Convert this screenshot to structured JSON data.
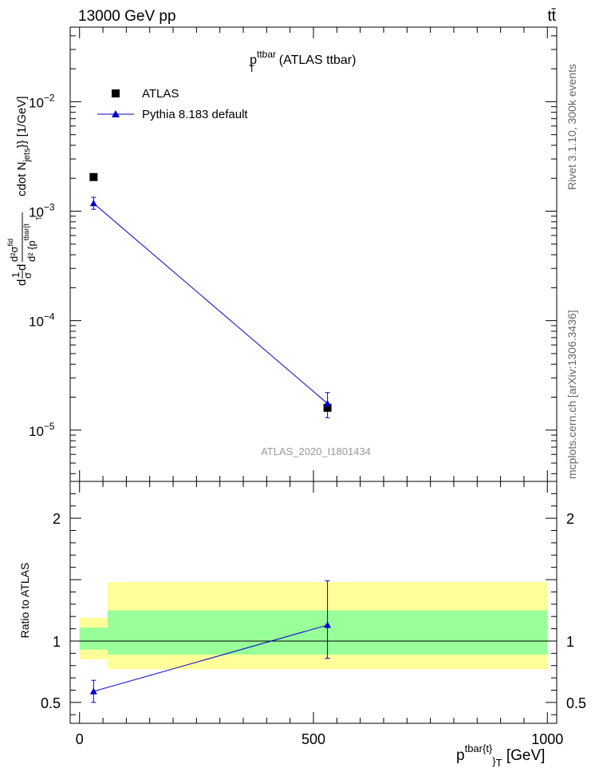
{
  "header": {
    "energy_label": "13000 GeV pp",
    "process_label": "tt̄"
  },
  "plot_title": {
    "main": "p",
    "sup": "ttbar",
    "sub": "T",
    "rest": " (ATLAS ttbar)"
  },
  "side_labels": {
    "rivet": "Rivet 3.1.10,  300k events",
    "mcplots": "mcplots.cern.ch [arXiv:1306.3436]"
  },
  "analysis_id": "ATLAS_2020_I1801434",
  "colors": {
    "data": "#000000",
    "mc": "#0000cc",
    "band_inner": "#99ff99",
    "band_outer": "#ffff99"
  },
  "chart_data": [
    {
      "type": "scatter",
      "panel": "main",
      "yscale": "log",
      "ylabel": "d²σ / d²{p_T^{tbar{t}} cdot N_jets}} [1/GeV]",
      "ylabel_parts": {
        "frac1_num": "1",
        "frac1_den": "σ",
        "d_lead": "d",
        "d_mid": "d",
        "frac2_num": "d²σ",
        "frac2_num_sup": "fid",
        "frac2_den": "d² {p",
        "frac2_den_sup": "tbar{t",
        "frac2_den_sub": "T",
        "tail": "cdot N",
        "tail_sub": "jets",
        "tail_end": "}} [1/GeV]"
      },
      "xlim": [
        -20,
        1020
      ],
      "ylim": [
        3.4e-06,
        0.048
      ],
      "yticks": [
        {
          "value": 1e-05,
          "label_base": "10",
          "label_exp": "−5"
        },
        {
          "value": 0.0001,
          "label_base": "10",
          "label_exp": "−4"
        },
        {
          "value": 0.001,
          "label_base": "10",
          "label_exp": "−3"
        },
        {
          "value": 0.01,
          "label_base": "10",
          "label_exp": "−2"
        }
      ],
      "legend": {
        "placement": "top-left",
        "entries": [
          "ATLAS",
          "Pythia 8.183 default"
        ]
      },
      "series": [
        {
          "name": "ATLAS",
          "marker": "square",
          "x": [
            30,
            530
          ],
          "y": [
            0.00205,
            1.6e-05
          ],
          "xerr": [
            [
              0,
              60
            ],
            [
              60,
              1000
            ]
          ]
        },
        {
          "name": "Pythia 8.183 default",
          "marker": "triangle",
          "x": [
            30,
            530
          ],
          "y": [
            0.00118,
            1.75e-05
          ],
          "yerr_low": [
            0.00104,
            1.3e-05
          ],
          "yerr_high": [
            0.00134,
            2.2e-05
          ]
        }
      ]
    },
    {
      "type": "scatter",
      "panel": "ratio",
      "ylabel": "Ratio to ATLAS",
      "xlabel": "p^{tbar{t}}_T [GeV]",
      "xlabel_parts": {
        "main": "p",
        "sup": "tbar{t}",
        "sub": "}",
        "sub2": "T",
        "unit": " [GeV]"
      },
      "xlim": [
        -20,
        1020
      ],
      "ylim": [
        0.33,
        2.3
      ],
      "xticks": [
        0,
        500,
        1000
      ],
      "yticks": [
        0.5,
        1,
        2
      ],
      "bands": [
        {
          "x0": 0,
          "x1": 60,
          "inner": [
            0.93,
            1.11
          ],
          "outer": [
            0.85,
            1.19
          ]
        },
        {
          "x0": 60,
          "x1": 1000,
          "inner": [
            0.89,
            1.25
          ],
          "outer": [
            0.77,
            1.48
          ]
        }
      ],
      "series": [
        {
          "name": "Pythia 8.183 default",
          "marker": "triangle",
          "x": [
            30,
            530
          ],
          "y": [
            0.59,
            1.13
          ],
          "yerr_low": [
            0.5,
            0.86
          ],
          "yerr_high": [
            0.68,
            1.49
          ]
        }
      ]
    }
  ]
}
